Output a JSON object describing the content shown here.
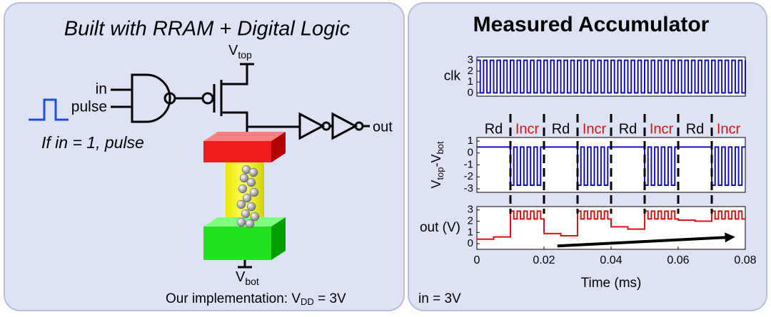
{
  "left_panel": {
    "title": "Built with RRAM + Digital Logic",
    "input_in": "in",
    "input_pulse": "pulse",
    "condition": "If in = 1, pulse",
    "v_top": {
      "text": "V",
      "sub": "top"
    },
    "v_bot": {
      "text": "V",
      "sub": "bot"
    },
    "output": "out",
    "implementation": {
      "text": "Our implementation: V",
      "sub": "DD",
      "tail": " = 3V"
    }
  },
  "right_panel": {
    "title": "Measured Accumulator",
    "note": "in = 3V",
    "phase_labels": [
      {
        "text": "Rd",
        "color": "#000000"
      },
      {
        "text": "Incr",
        "color": "#e01010"
      },
      {
        "text": "Rd",
        "color": "#000000"
      },
      {
        "text": "Incr",
        "color": "#e01010"
      },
      {
        "text": "Rd",
        "color": "#000000"
      },
      {
        "text": "Incr",
        "color": "#e01010"
      },
      {
        "text": "Rd",
        "color": "#000000"
      },
      {
        "text": "Incr",
        "color": "#e01010"
      }
    ],
    "phase_boundaries": [
      0.01,
      0.02,
      0.03,
      0.04,
      0.05,
      0.06,
      0.07
    ]
  },
  "chart_data": [
    {
      "type": "line",
      "step": true,
      "ylabel": {
        "text": "clk"
      },
      "color": "#1010c0",
      "xlim": [
        0,
        0.08
      ],
      "ylim": [
        -0.3,
        3.3
      ],
      "yticks": [
        0,
        1,
        2,
        3
      ],
      "x": [
        0,
        0.001,
        0.002,
        0.003,
        0.004,
        0.005,
        0.006,
        0.007,
        0.008,
        0.009,
        0.01,
        0.011,
        0.012,
        0.013,
        0.014,
        0.015,
        0.016,
        0.017,
        0.018,
        0.019,
        0.02,
        0.021,
        0.022,
        0.023,
        0.024,
        0.025,
        0.026,
        0.027,
        0.028,
        0.029,
        0.03,
        0.031,
        0.032,
        0.033,
        0.034,
        0.035,
        0.036,
        0.037,
        0.038,
        0.039,
        0.04,
        0.041,
        0.042,
        0.043,
        0.044,
        0.045,
        0.046,
        0.047,
        0.048,
        0.049,
        0.05,
        0.051,
        0.052,
        0.053,
        0.054,
        0.055,
        0.056,
        0.057,
        0.058,
        0.059,
        0.06,
        0.061,
        0.062,
        0.063,
        0.064,
        0.065,
        0.066,
        0.067,
        0.068,
        0.069,
        0.07,
        0.071,
        0.072,
        0.073,
        0.074,
        0.075,
        0.076,
        0.077,
        0.078,
        0.079,
        0.08
      ],
      "values": [
        3,
        0,
        3,
        0,
        3,
        0,
        3,
        0,
        3,
        0,
        3,
        0,
        3,
        0,
        3,
        0,
        3,
        0,
        3,
        0,
        3,
        0,
        3,
        0,
        3,
        0,
        3,
        0,
        3,
        0,
        3,
        0,
        3,
        0,
        3,
        0,
        3,
        0,
        3,
        0,
        3,
        0,
        3,
        0,
        3,
        0,
        3,
        0,
        3,
        0,
        3,
        0,
        3,
        0,
        3,
        0,
        3,
        0,
        3,
        0,
        3,
        0,
        3,
        0,
        3,
        0,
        3,
        0,
        3,
        0,
        3,
        0,
        3,
        0,
        3,
        0,
        3,
        0,
        3,
        0,
        3
      ]
    },
    {
      "type": "line",
      "step": true,
      "ylabel": {
        "text": "V",
        "sub": "top",
        "mid": "-V",
        "sub2": "bot"
      },
      "color": "#1010c0",
      "xlim": [
        0,
        0.08
      ],
      "ylim": [
        -3.3,
        1.3
      ],
      "yticks": [
        1,
        0,
        -1,
        -2,
        -3
      ],
      "x": [
        0,
        0.01,
        0.011,
        0.012,
        0.013,
        0.014,
        0.015,
        0.016,
        0.017,
        0.018,
        0.019,
        0.03,
        0.031,
        0.032,
        0.033,
        0.034,
        0.035,
        0.036,
        0.037,
        0.038,
        0.039,
        0.05,
        0.051,
        0.052,
        0.053,
        0.054,
        0.055,
        0.056,
        0.057,
        0.058,
        0.059,
        0.07,
        0.071,
        0.072,
        0.073,
        0.074,
        0.075,
        0.076,
        0.077,
        0.078,
        0.079,
        0.08
      ],
      "values": [
        0.5,
        -2.7,
        0.5,
        -2.7,
        0.5,
        -2.7,
        0.5,
        -2.7,
        0.5,
        -2.7,
        0.5,
        -2.7,
        0.5,
        -2.7,
        0.5,
        -2.7,
        0.5,
        -2.7,
        0.5,
        -2.7,
        0.5,
        -2.7,
        0.5,
        -2.7,
        0.5,
        -2.7,
        0.5,
        -2.7,
        0.5,
        -2.7,
        0.5,
        -2.7,
        0.5,
        -2.7,
        0.5,
        -2.7,
        0.5,
        -2.7,
        0.5,
        -2.7,
        0.5,
        0.5
      ]
    },
    {
      "type": "line",
      "step": true,
      "ylabel": {
        "text": "out (V)"
      },
      "color": "#e01010",
      "xlim": [
        0,
        0.08
      ],
      "ylim": [
        -0.5,
        3.3
      ],
      "yticks": [
        0,
        1,
        2,
        3
      ],
      "xticks": [
        0,
        0.02,
        0.04,
        0.06,
        0.08
      ],
      "xlabel": "Time (ms)",
      "x": [
        0,
        0.005,
        0.01,
        0.011,
        0.012,
        0.013,
        0.014,
        0.015,
        0.016,
        0.017,
        0.018,
        0.019,
        0.02,
        0.025,
        0.03,
        0.031,
        0.032,
        0.033,
        0.034,
        0.035,
        0.036,
        0.037,
        0.038,
        0.039,
        0.04,
        0.045,
        0.05,
        0.051,
        0.052,
        0.053,
        0.054,
        0.055,
        0.056,
        0.057,
        0.058,
        0.059,
        0.06,
        0.065,
        0.07,
        0.071,
        0.072,
        0.073,
        0.074,
        0.075,
        0.076,
        0.077,
        0.078,
        0.079,
        0.08
      ],
      "values": [
        0.4,
        0.6,
        2.9,
        2.2,
        2.9,
        2.2,
        2.9,
        2.2,
        2.9,
        2.2,
        2.9,
        2.2,
        0.9,
        0.7,
        2.9,
        2.2,
        2.9,
        2.2,
        2.9,
        2.2,
        2.9,
        2.2,
        2.9,
        2.2,
        1.5,
        1.3,
        2.9,
        2.2,
        2.9,
        2.2,
        2.9,
        2.2,
        2.9,
        2.2,
        2.9,
        2.2,
        2.1,
        2.0,
        2.9,
        2.2,
        2.9,
        2.2,
        2.9,
        2.2,
        2.9,
        2.2,
        2.9,
        2.2,
        2.2
      ],
      "arrow": {
        "from": [
          0.024,
          -0.2
        ],
        "to": [
          0.077,
          0.6
        ]
      }
    }
  ]
}
